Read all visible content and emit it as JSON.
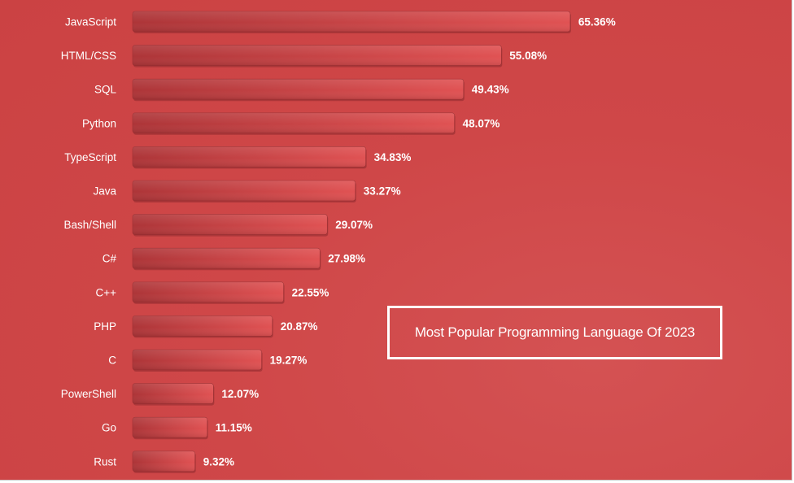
{
  "chart_data": {
    "type": "bar",
    "orientation": "horizontal",
    "title": "Most Popular Programming Language Of 2023",
    "categories": [
      "JavaScript",
      "HTML/CSS",
      "SQL",
      "Python",
      "TypeScript",
      "Java",
      "Bash/Shell",
      "C#",
      "C++",
      "PHP",
      "C",
      "PowerShell",
      "Go",
      "Rust"
    ],
    "values": [
      65.36,
      55.08,
      49.43,
      48.07,
      34.83,
      33.27,
      29.07,
      27.98,
      22.55,
      20.87,
      19.27,
      12.07,
      11.15,
      9.32
    ],
    "value_labels": [
      "65.36%",
      "55.08%",
      "49.43%",
      "48.07%",
      "34.83%",
      "33.27%",
      "29.07%",
      "27.98%",
      "22.55%",
      "20.87%",
      "19.27%",
      "12.07%",
      "11.15%",
      "9.32%"
    ],
    "value_suffix": "%",
    "xlim": [
      0,
      100
    ],
    "grid": false,
    "legend": "none",
    "colors": {
      "background": "#cf4748",
      "bar_dark": "#b0373a",
      "bar_light": "#e05152",
      "text": "#ffffff"
    }
  }
}
